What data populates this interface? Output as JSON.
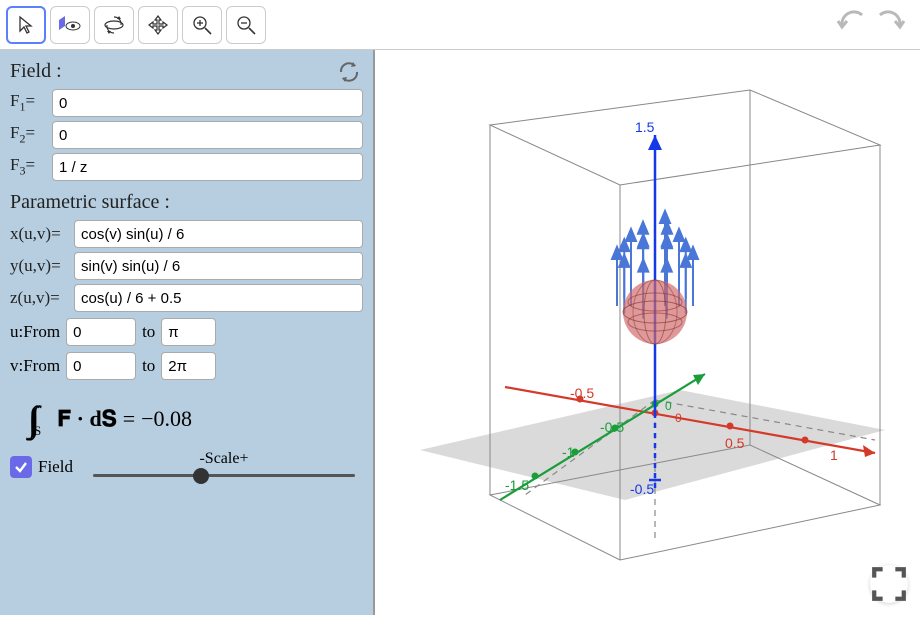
{
  "toolbar": {
    "tools": [
      "pointer",
      "view",
      "rotate",
      "pan",
      "zoom-in",
      "zoom-out"
    ]
  },
  "sidebar": {
    "field_title": "Field :",
    "fields": {
      "f1": {
        "label": "F",
        "sub": "1",
        "eq": "=",
        "value": "0"
      },
      "f2": {
        "label": "F",
        "sub": "2",
        "eq": "=",
        "value": "0"
      },
      "f3": {
        "label": "F",
        "sub": "3",
        "eq": "=",
        "value": "1 / z"
      }
    },
    "param_title": "Parametric surface :",
    "params": {
      "x": {
        "label": "x(u,v)=",
        "value": "cos(v) sin(u) / 6"
      },
      "y": {
        "label": "y(u,v)=",
        "value": "sin(v) sin(u) / 6"
      },
      "z": {
        "label": "z(u,v)=",
        "value": "cos(u) / 6 + 0.5"
      }
    },
    "ranges": {
      "u": {
        "from_label": "u:From",
        "from": "0",
        "to_label": "to",
        "to": "π"
      },
      "v": {
        "from_label": "v:From",
        "from": "0",
        "to_label": "to",
        "to": "2π"
      }
    },
    "integral": {
      "lhs": "𝐅 · d𝐒",
      "eq": " = ",
      "value": "−0.08"
    },
    "field_checkbox_label": "Field",
    "scale_label": "-Scale+",
    "slider_pos": 0.38
  },
  "view3d": {
    "axis_labels": {
      "z_top": "1.5",
      "x_neg": "-0.5",
      "x_pos": "0.5",
      "x_far": "1",
      "y_neg": "-0.5",
      "y_neg2": "-1",
      "y_neg3": "-1.5",
      "z_neg": "-0.5",
      "origin": "0"
    },
    "colors": {
      "x_axis": "#d43a2a",
      "y_axis": "#1a9e3a",
      "z_axis": "#1539e8",
      "cube": "#888",
      "floor": "#7b7b7b",
      "sphere_fill": "#d16868",
      "sphere_stroke": "#8b3a3a",
      "vectors": "#4a76d8"
    }
  }
}
